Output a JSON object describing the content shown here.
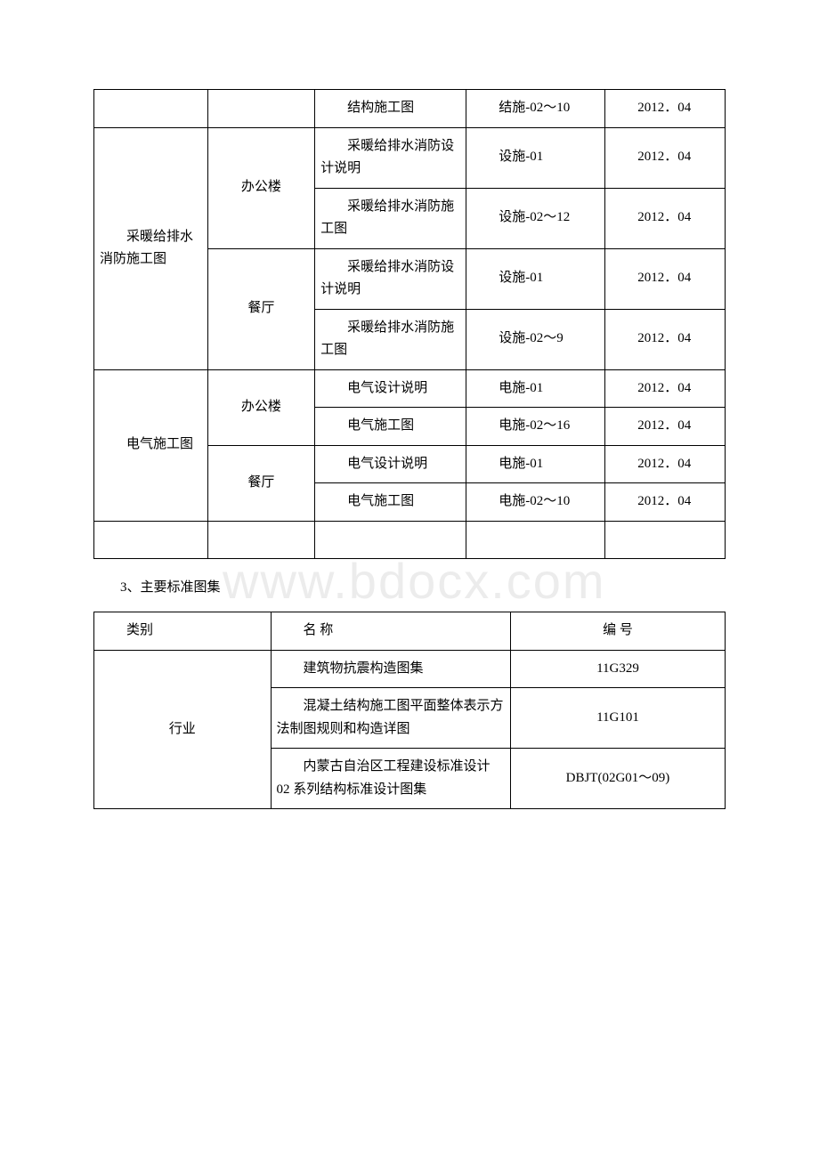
{
  "table1": {
    "rows": [
      {
        "c1": "",
        "c2": "",
        "c3": "结构施工图",
        "c4": "结施-02～10",
        "c5": "2012．04"
      },
      {
        "c1": "采暖给排水消防施工图",
        "c2": "办公楼",
        "c3": "采暖给排水消防设计说明",
        "c4": "设施-01",
        "c5": "2012．04",
        "c1_rowspan": 4,
        "c2_rowspan": 2
      },
      {
        "c3": "采暖给排水消防施工图",
        "c4": "设施-02～12",
        "c5": "2012．04"
      },
      {
        "c2": "餐厅",
        "c3": "采暖给排水消防设计说明",
        "c4": "设施-01",
        "c5": "2012．04",
        "c2_rowspan": 2
      },
      {
        "c3": "采暖给排水消防施工图",
        "c4": "设施-02～9",
        "c5": "2012．04"
      },
      {
        "c1": "电气施工图",
        "c2": "办公楼",
        "c3": "电气设计说明",
        "c4": "电施-01",
        "c5": "2012．04",
        "c1_rowspan": 4,
        "c2_rowspan": 2
      },
      {
        "c3": "电气施工图",
        "c4": "电施-02～16",
        "c5": "2012．04"
      },
      {
        "c2": "餐厅",
        "c3": "电气设计说明",
        "c4": "电施-01",
        "c5": "2012．04",
        "c2_rowspan": 2
      },
      {
        "c3": "电气施工图",
        "c4": "电施-02～10",
        "c5": "2012．04"
      },
      {
        "c1": "",
        "c2": "",
        "c3": "",
        "c4": "",
        "c5": "",
        "blank": true
      }
    ]
  },
  "section_heading": "3、主要标准图集",
  "table2": {
    "header": {
      "c1": "类别",
      "c2": "名 称",
      "c3": "编 号"
    },
    "rows": [
      {
        "c1": "行业",
        "c2": "建筑物抗震构造图集",
        "c3": "11G329",
        "c1_rowspan": 3
      },
      {
        "c2": "混凝土结构施工图平面整体表示方法制图规则和构造详图",
        "c3": "11G101"
      },
      {
        "c2": "内蒙古自治区工程建设标准设计 02 系列结构标准设计图集",
        "c3": "DBJT(02G01～09)"
      }
    ]
  },
  "watermark": "www.bdocx.com"
}
